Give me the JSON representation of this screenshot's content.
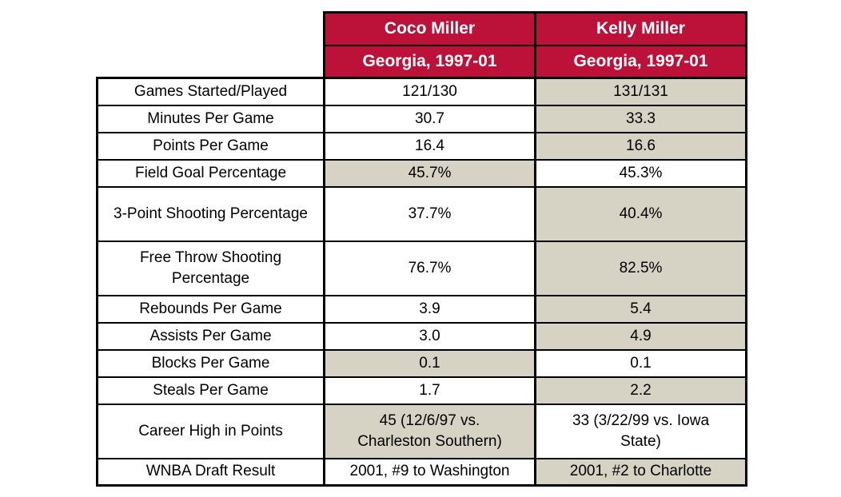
{
  "colors": {
    "header_red": "#bc1138",
    "highlight_beige": "#d6d2c4",
    "border_black": "#000000",
    "header_text_white": "#ffffff",
    "body_text_black": "#000000"
  },
  "chart_data": {
    "type": "table",
    "columns": [
      {
        "header": "Coco Miller",
        "subheader": "Georgia, 1997-01"
      },
      {
        "header": "Kelly Miller",
        "subheader": "Georgia, 1997-01"
      }
    ],
    "rows": [
      {
        "label": "Games Started/Played",
        "coco": "121/130",
        "kelly": "131/131",
        "coco_shaded": false,
        "kelly_shaded": true
      },
      {
        "label": "Minutes Per Game",
        "coco": "30.7",
        "kelly": "33.3",
        "coco_shaded": false,
        "kelly_shaded": true
      },
      {
        "label": "Points Per Game",
        "coco": "16.4",
        "kelly": "16.6",
        "coco_shaded": false,
        "kelly_shaded": true
      },
      {
        "label": "Field Goal Percentage",
        "coco": "45.7%",
        "kelly": "45.3%",
        "coco_shaded": true,
        "kelly_shaded": false
      },
      {
        "label": "3-Point Shooting Percentage",
        "coco": "37.7%",
        "kelly": "40.4%",
        "coco_shaded": false,
        "kelly_shaded": true
      },
      {
        "label": "Free Throw Shooting Percentage",
        "coco": "76.7%",
        "kelly": "82.5%",
        "coco_shaded": false,
        "kelly_shaded": true
      },
      {
        "label": "Rebounds Per Game",
        "coco": "3.9",
        "kelly": "5.4",
        "coco_shaded": false,
        "kelly_shaded": true
      },
      {
        "label": "Assists Per Game",
        "coco": "3.0",
        "kelly": "4.9",
        "coco_shaded": false,
        "kelly_shaded": true
      },
      {
        "label": "Blocks Per Game",
        "coco": "0.1",
        "kelly": "0.1",
        "coco_shaded": true,
        "kelly_shaded": false
      },
      {
        "label": "Steals Per Game",
        "coco": "1.7",
        "kelly": "2.2",
        "coco_shaded": false,
        "kelly_shaded": true
      },
      {
        "label": "Career High in Points",
        "coco": "45 (12/6/97 vs. Charleston Southern)",
        "kelly": "33 (3/22/99 vs. Iowa State)",
        "coco_shaded": true,
        "kelly_shaded": false
      },
      {
        "label": "WNBA Draft Result",
        "coco": "2001, #9 to Washington",
        "kelly": "2001, #2 to Charlotte",
        "coco_shaded": false,
        "kelly_shaded": true
      }
    ]
  }
}
